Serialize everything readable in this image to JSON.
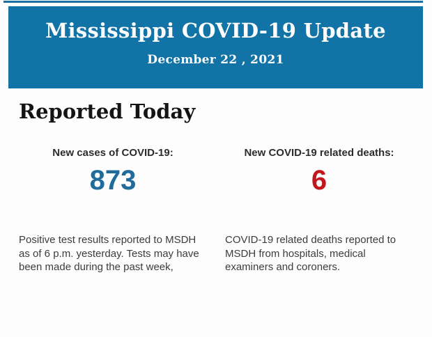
{
  "page": {
    "background": "#fcfdfc"
  },
  "header": {
    "title": "Mississippi COVID-19 Update",
    "date": "December 22 , 2021",
    "background": "#1173a6",
    "top_line_color": "#17709f",
    "text_color": "#fdfdfd"
  },
  "section": {
    "heading": "Reported Today"
  },
  "stats": [
    {
      "label": "New cases of COVID-19:",
      "value": "873",
      "value_color": "#1f6b9c",
      "description": "Positive test results reported to MSDH as of 6 p.m. yesterday. Tests may have been made during the past week,"
    },
    {
      "label": "New COVID-19 related deaths:",
      "value": "6",
      "value_color": "#c2171d",
      "description": "COVID-19 related deaths reported to MSDH from hospitals, medical examiners and coroners."
    }
  ]
}
